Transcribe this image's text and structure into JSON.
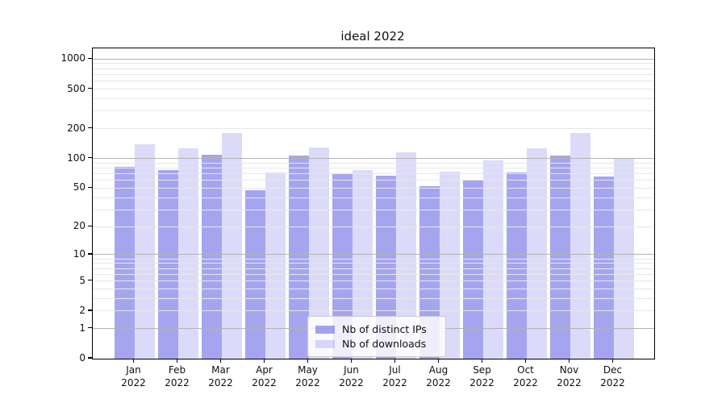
{
  "figure": {
    "background": "#ffffff"
  },
  "chart_data": {
    "type": "bar",
    "title": "ideal 2022",
    "categories": [
      "Jan",
      "Feb",
      "Mar",
      "Apr",
      "May",
      "Jun",
      "Jul",
      "Aug",
      "Sep",
      "Oct",
      "Nov",
      "Dec"
    ],
    "x_tick_year": "2022",
    "series": [
      {
        "name": "Nb of distinct IPs",
        "color": "rgba(85,85,225,0.53)",
        "solid_color": "#a5a5f0",
        "values": [
          82,
          76,
          109,
          48,
          108,
          69,
          67,
          52,
          60,
          72,
          107,
          66
        ]
      },
      {
        "name": "Nb of downloads",
        "color": "rgba(85,85,225,0.21)",
        "solid_color": "#dcdcf7",
        "values": [
          139,
          127,
          181,
          72,
          129,
          77,
          115,
          74,
          96,
          126,
          181,
          101
        ]
      }
    ],
    "y_scale": "log1p",
    "y_ticks": [
      0,
      1,
      2,
      5,
      10,
      20,
      50,
      100,
      200,
      500,
      1000
    ],
    "ylim": [
      0,
      1280
    ],
    "grid": {
      "major_ticks": [
        1,
        10,
        100,
        1000
      ],
      "major_color": "#b2b2b2",
      "minor_color": "#e7e7e7"
    },
    "legend": {
      "position": "lower center"
    }
  }
}
